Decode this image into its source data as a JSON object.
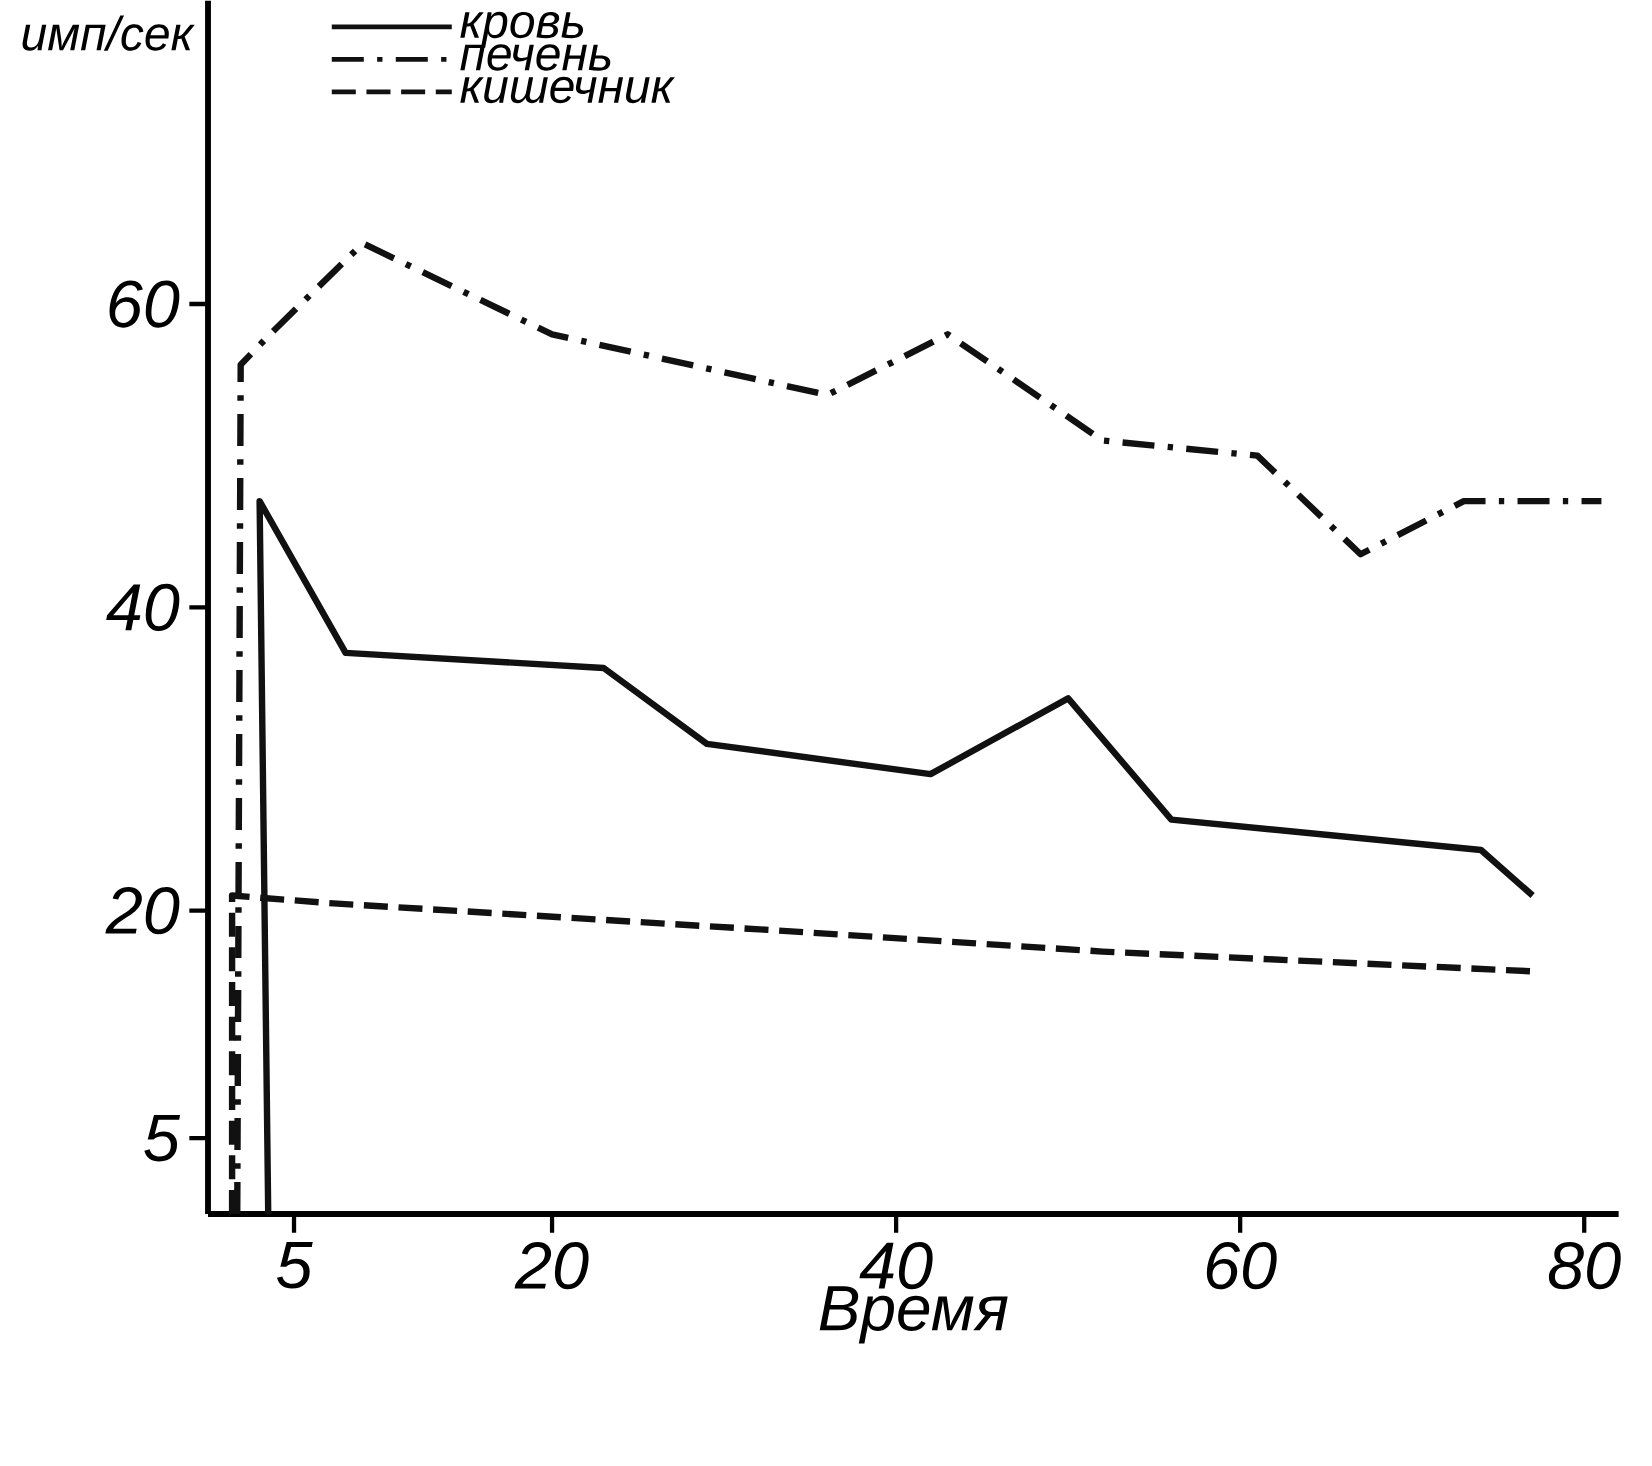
{
  "chart_data": {
    "type": "line",
    "xlabel": "Время",
    "ylabel": "имп/сек",
    "xlim": [
      0,
      82
    ],
    "ylim": [
      0,
      80
    ],
    "xticks": [
      5,
      20,
      40,
      60,
      80
    ],
    "yticks": [
      5,
      20,
      40,
      60
    ],
    "legend": "top left",
    "marker": "none",
    "series": [
      {
        "name": "кровь",
        "color": "#111111",
        "line_style": "solid",
        "x": [
          3.5,
          3,
          8,
          23,
          29,
          42,
          50,
          56,
          74,
          77
        ],
        "values": [
          0,
          47,
          37,
          36,
          31,
          29,
          34,
          26,
          24,
          21
        ]
      },
      {
        "name": "печень",
        "color": "#111111",
        "line_style": "dashdot",
        "x": [
          1.7,
          1.9,
          3.6,
          9,
          20,
          36,
          43,
          52,
          61,
          67,
          73,
          81
        ],
        "values": [
          0,
          56,
          58,
          64,
          58,
          54,
          58,
          51,
          50,
          43.5,
          47,
          47
        ]
      },
      {
        "name": "кишечник",
        "color": "#111111",
        "line_style": "dashed",
        "x": [
          1.4,
          1.4,
          7,
          33,
          52,
          77
        ],
        "values": [
          0,
          21,
          20.5,
          18.7,
          17.3,
          16
        ]
      }
    ]
  }
}
